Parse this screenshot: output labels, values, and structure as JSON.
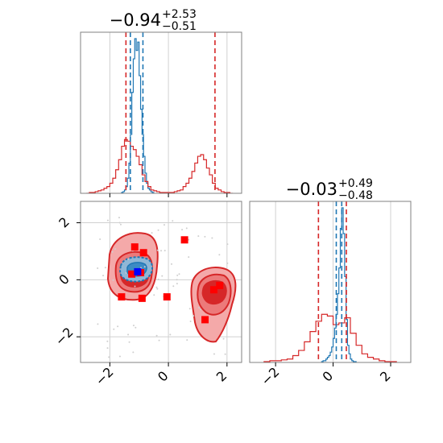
{
  "chart_data": [
    {
      "type": "histogram",
      "panel": "marginal-parameter-1",
      "title_value": "−0.94",
      "title_upper": "+2.53",
      "title_lower": "−0.51",
      "xlim": [
        -3.0,
        2.5
      ],
      "grid": true,
      "series": [
        {
          "color": "#1f77b4",
          "bins": [
            -1.6,
            -1.55,
            -1.5,
            -1.45,
            -1.4,
            -1.35,
            -1.3,
            -1.25,
            -1.2,
            -1.15,
            -1.1,
            -1.05,
            -1.0,
            -0.95,
            -0.9,
            -0.85,
            -0.8,
            -0.75,
            -0.7,
            -0.65,
            -0.6,
            -0.55,
            -0.5
          ],
          "counts": [
            0.5,
            1,
            2,
            4,
            9,
            18,
            35,
            60,
            80,
            92,
            85,
            90,
            70,
            50,
            35,
            22,
            12,
            6,
            3,
            2,
            1,
            0.5
          ]
        },
        {
          "color": "#d62728",
          "bins": [
            -2.8,
            -2.7,
            -2.6,
            -2.5,
            -2.4,
            -2.3,
            -2.2,
            -2.1,
            -2.0,
            -1.9,
            -1.8,
            -1.7,
            -1.6,
            -1.5,
            -1.4,
            -1.3,
            -1.2,
            -1.1,
            -1.0,
            -0.9,
            -0.8,
            -0.7,
            -0.6,
            -0.5,
            -0.4,
            -0.3,
            -0.2,
            -0.1,
            0.0,
            0.1,
            0.2,
            0.3,
            0.4,
            0.5,
            0.6,
            0.7,
            0.8,
            0.9,
            1.0,
            1.1,
            1.2,
            1.3,
            1.4,
            1.5,
            1.6,
            1.7,
            1.8,
            1.9,
            2.0,
            2.1,
            2.2
          ],
          "counts": [
            0,
            0.5,
            0.5,
            1,
            1.5,
            2,
            3,
            4,
            6,
            9,
            14,
            20,
            28,
            32,
            31,
            28,
            26,
            22,
            17,
            11,
            7,
            4,
            2,
            1.5,
            1,
            0.5,
            0.5,
            0.5,
            0.5,
            0.5,
            1,
            1.5,
            2,
            4,
            6,
            9,
            13,
            18,
            22,
            23,
            20,
            15,
            11,
            6,
            3,
            2,
            1,
            0.5,
            0.5,
            0
          ]
        }
      ],
      "vlines": [
        {
          "x": -1.45,
          "color": "#d62728"
        },
        {
          "x": -1.3,
          "color": "#1f77b4"
        },
        {
          "x": -0.87,
          "color": "#1f77b4"
        },
        {
          "x": 1.59,
          "color": "#d62728"
        }
      ]
    },
    {
      "type": "histogram",
      "panel": "marginal-parameter-2",
      "title_value": "−0.03",
      "title_upper": "+0.49",
      "title_lower": "−0.48",
      "xlim": [
        -2.9,
        2.7
      ],
      "grid": true,
      "series": [
        {
          "color": "#1f77b4",
          "bins": [
            -0.4,
            -0.35,
            -0.3,
            -0.25,
            -0.2,
            -0.15,
            -0.1,
            -0.05,
            0.0,
            0.05,
            0.1,
            0.15,
            0.2,
            0.25,
            0.3,
            0.35,
            0.4,
            0.45,
            0.5,
            0.55,
            0.6,
            0.65,
            0.7,
            0.75,
            0.8
          ],
          "counts": [
            0.5,
            1,
            1,
            2,
            3,
            4,
            6,
            9,
            14,
            20,
            28,
            40,
            55,
            78,
            90,
            75,
            50,
            25,
            10,
            5,
            2,
            1,
            0.5,
            0.5
          ]
        },
        {
          "color": "#d62728",
          "bins": [
            -2.4,
            -2.2,
            -2.0,
            -1.8,
            -1.6,
            -1.4,
            -1.2,
            -1.0,
            -0.8,
            -0.6,
            -0.4,
            -0.2,
            0.0,
            0.2,
            0.4,
            0.6,
            0.8,
            1.0,
            1.2,
            1.4,
            1.6,
            1.8,
            2.0,
            2.2
          ],
          "counts": [
            0.5,
            1,
            1,
            1.5,
            2,
            4,
            7,
            12,
            18,
            24,
            28,
            27,
            22,
            23,
            26,
            17,
            10,
            5,
            3,
            2,
            1,
            0.5,
            0.5
          ]
        }
      ],
      "vlines": [
        {
          "x": -0.51,
          "color": "#d62728"
        },
        {
          "x": 0.11,
          "color": "#1f77b4"
        },
        {
          "x": 0.3,
          "color": "#1f77b4"
        },
        {
          "x": 0.46,
          "color": "#d62728"
        }
      ]
    },
    {
      "type": "scatter",
      "panel": "joint-2d",
      "xlim": [
        -3.0,
        2.5
      ],
      "ylim": [
        -2.9,
        2.75
      ],
      "xticks": [
        -2,
        0,
        2
      ],
      "yticks": [
        -2,
        0,
        2
      ],
      "xtick_labels": [
        "−2",
        "0",
        "2"
      ],
      "ytick_labels": [
        "−2",
        "0",
        "2"
      ],
      "grid": true,
      "series": [
        {
          "color": "#ff0000",
          "marker": "square",
          "points": [
            [
              -1.15,
              1.15
            ],
            [
              -0.85,
              0.95
            ],
            [
              -1.25,
              0.2
            ],
            [
              -0.95,
              0.25
            ],
            [
              -1.6,
              -0.6
            ],
            [
              -0.9,
              -0.65
            ],
            [
              -0.05,
              -0.6
            ],
            [
              0.55,
              1.4
            ],
            [
              1.55,
              -0.35
            ],
            [
              1.75,
              -0.2
            ],
            [
              1.25,
              -1.4
            ]
          ]
        },
        {
          "color": "#0000ff",
          "marker": "square",
          "points": [
            [
              -1.05,
              0.28
            ]
          ]
        }
      ]
    }
  ]
}
